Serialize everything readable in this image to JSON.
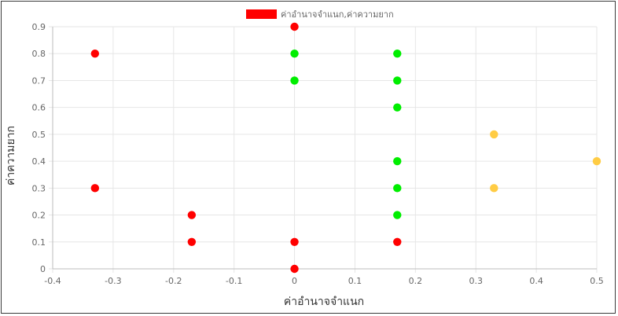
{
  "chart_data": {
    "type": "scatter",
    "legend": {
      "label": "ค่าอำนาจจำแนก,ค่าความยาก",
      "position": "top",
      "color": "#ff0000"
    },
    "xlabel": "ค่าอำนาจจำแนก",
    "ylabel": "ค่าความยาก",
    "xlim": [
      -0.4,
      0.5
    ],
    "ylim": [
      0,
      0.9
    ],
    "x_ticks": [
      "-0.4",
      "-0.3",
      "-0.2",
      "-0.1",
      "0",
      "0.1",
      "0.2",
      "0.3",
      "0.4",
      "0.5"
    ],
    "y_ticks": [
      "0",
      "0.1",
      "0.2",
      "0.3",
      "0.4",
      "0.5",
      "0.6",
      "0.7",
      "0.8",
      "0.9"
    ],
    "grid": true,
    "colors": {
      "red": "#ff0000",
      "green": "#00ee00",
      "orange": "#ffcc44"
    },
    "points": [
      {
        "x": -0.33,
        "y": 0.8,
        "color": "red"
      },
      {
        "x": -0.33,
        "y": 0.3,
        "color": "red"
      },
      {
        "x": -0.17,
        "y": 0.2,
        "color": "red"
      },
      {
        "x": -0.17,
        "y": 0.1,
        "color": "red"
      },
      {
        "x": 0,
        "y": 0.9,
        "color": "red"
      },
      {
        "x": 0,
        "y": 0.8,
        "color": "green"
      },
      {
        "x": 0,
        "y": 0.7,
        "color": "green"
      },
      {
        "x": 0,
        "y": 0.1,
        "color": "red"
      },
      {
        "x": 0,
        "y": 0,
        "color": "red"
      },
      {
        "x": 0.17,
        "y": 0.8,
        "color": "green"
      },
      {
        "x": 0.17,
        "y": 0.7,
        "color": "green"
      },
      {
        "x": 0.17,
        "y": 0.6,
        "color": "green"
      },
      {
        "x": 0.17,
        "y": 0.4,
        "color": "green"
      },
      {
        "x": 0.17,
        "y": 0.3,
        "color": "green"
      },
      {
        "x": 0.17,
        "y": 0.2,
        "color": "green"
      },
      {
        "x": 0.17,
        "y": 0.1,
        "color": "red"
      },
      {
        "x": 0.33,
        "y": 0.5,
        "color": "orange"
      },
      {
        "x": 0.33,
        "y": 0.3,
        "color": "orange"
      },
      {
        "x": 0.5,
        "y": 0.4,
        "color": "orange"
      }
    ]
  }
}
